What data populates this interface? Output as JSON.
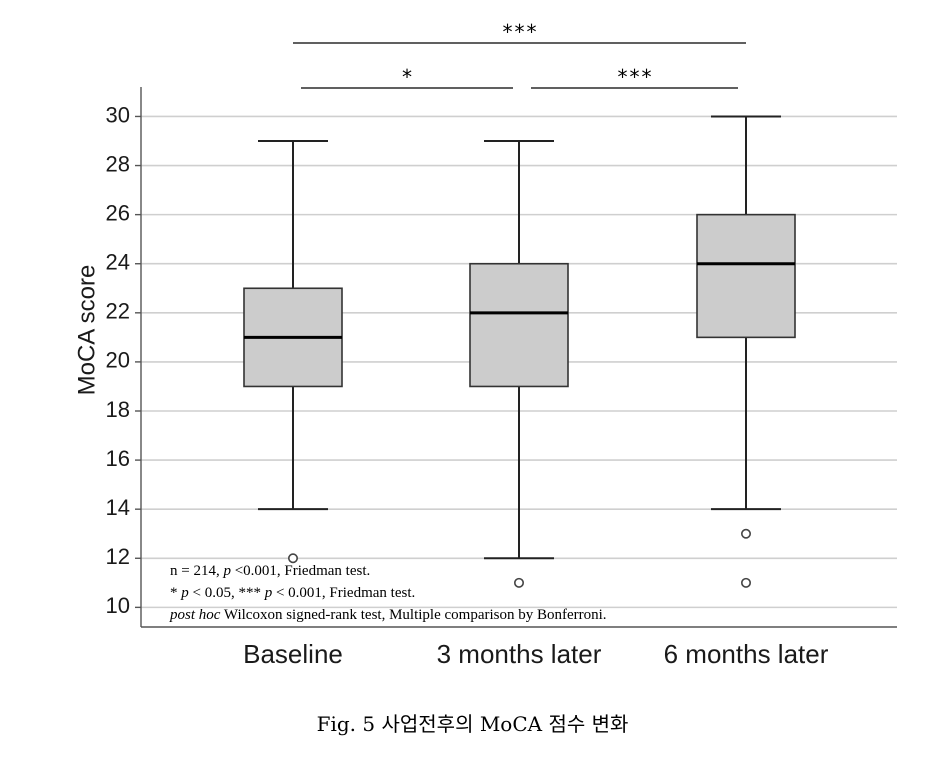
{
  "chart_data": {
    "type": "box",
    "ylabel": "MoCA score",
    "xlabel": "",
    "ylim": [
      9.2,
      31.2
    ],
    "yticks": [
      10,
      12,
      14,
      16,
      18,
      20,
      22,
      24,
      26,
      28,
      30
    ],
    "grid": true,
    "categories": [
      "Baseline",
      "3 months later",
      "6 months later"
    ],
    "boxes": [
      {
        "whisker_low": 14,
        "q1": 19,
        "median": 21,
        "q3": 23,
        "whisker_high": 29,
        "outliers": [
          12
        ]
      },
      {
        "whisker_low": 12,
        "q1": 19,
        "median": 22,
        "q3": 24,
        "whisker_high": 29,
        "outliers": [
          11
        ]
      },
      {
        "whisker_low": 14,
        "q1": 21,
        "median": 24,
        "q3": 26,
        "whisker_high": 30,
        "outliers": [
          13,
          11
        ]
      }
    ],
    "box_color": "#cccccc",
    "significance": [
      {
        "from": 0,
        "to": 2,
        "label": "***",
        "level": 1
      },
      {
        "from": 0,
        "to": 1,
        "label": "*",
        "level": 0
      },
      {
        "from": 1,
        "to": 2,
        "label": "***",
        "level": 0
      }
    ],
    "notes": [
      "n = 214, p <0.001, Friedman test.",
      "* p < 0.05, *** p < 0.001, Friedman test.",
      "post hoc Wilcoxon signed-rank test, Multiple comparison by Bonferroni."
    ]
  },
  "caption": "Fig. 5  사업전후의 MoCA 점수 변화"
}
